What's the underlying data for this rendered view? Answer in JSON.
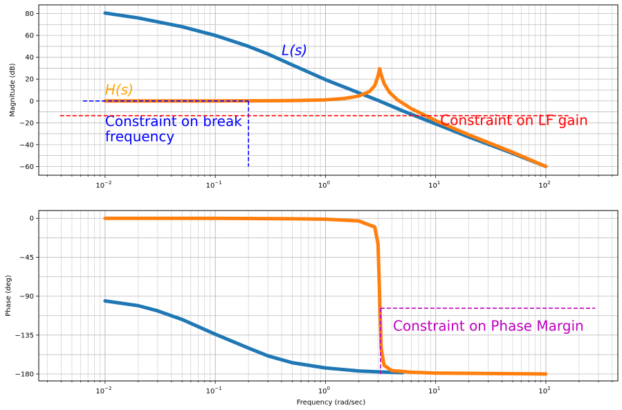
{
  "chart_data": [
    {
      "type": "line",
      "xscale": "log",
      "xlim": [
        0.0025,
        450
      ],
      "ylim": [
        -68,
        88
      ],
      "ylabel": "Magnitude (dB)",
      "xlabel": "",
      "grid": true,
      "xticks": [
        {
          "value": 0.01,
          "label": "10",
          "exp": "−2"
        },
        {
          "value": 0.1,
          "label": "10",
          "exp": "−1"
        },
        {
          "value": 1,
          "label": "10",
          "exp": "0"
        },
        {
          "value": 10,
          "label": "10",
          "exp": "1"
        },
        {
          "value": 100,
          "label": "10",
          "exp": "2"
        }
      ],
      "yticks": [
        {
          "value": 80,
          "label": "80"
        },
        {
          "value": 60,
          "label": "60"
        },
        {
          "value": 40,
          "label": "40"
        },
        {
          "value": 20,
          "label": "20"
        },
        {
          "value": 0,
          "label": "0"
        },
        {
          "value": -20,
          "label": "−20"
        },
        {
          "value": -40,
          "label": "−40"
        },
        {
          "value": -60,
          "label": "−60"
        }
      ],
      "series": [
        {
          "id": "L",
          "color": "#1f77b4",
          "points": [
            [
              0.01,
              80.5
            ],
            [
              0.02,
              76
            ],
            [
              0.05,
              68
            ],
            [
              0.1,
              60
            ],
            [
              0.2,
              50
            ],
            [
              0.3,
              43
            ],
            [
              0.5,
              33
            ],
            [
              1,
              19.5
            ],
            [
              2,
              7.5
            ],
            [
              3,
              0.5
            ],
            [
              5,
              -9
            ],
            [
              10,
              -21
            ],
            [
              20,
              -33
            ],
            [
              50,
              -48
            ],
            [
              100,
              -60
            ]
          ]
        },
        {
          "id": "H",
          "color": "#ff7f0e",
          "points": [
            [
              0.01,
              0
            ],
            [
              0.1,
              0
            ],
            [
              0.5,
              0.3
            ],
            [
              1,
              1
            ],
            [
              1.5,
              2.3
            ],
            [
              2,
              4.5
            ],
            [
              2.5,
              8.5
            ],
            [
              2.8,
              14
            ],
            [
              3.0,
              23
            ],
            [
              3.1,
              29.5
            ],
            [
              3.2,
              24
            ],
            [
              3.4,
              16
            ],
            [
              3.8,
              8
            ],
            [
              4.5,
              1
            ],
            [
              6,
              -7
            ],
            [
              10,
              -18
            ],
            [
              20,
              -31
            ],
            [
              50,
              -47
            ],
            [
              100,
              -60
            ]
          ]
        }
      ],
      "constraints": [
        {
          "id": "break",
          "color": "#0000ff",
          "dash": true,
          "lines": [
            [
              [
                0.0063,
                0
              ],
              [
                0.2,
                0
              ]
            ],
            [
              [
                0.2,
                0
              ],
              [
                0.2,
                -60
              ]
            ]
          ],
          "label": "Constraint on break\nfrequency",
          "label_at": [
            0.01,
            -23
          ]
        },
        {
          "id": "lf",
          "color": "#ff0000",
          "dash": true,
          "lines": [
            [
              [
                0.0039,
                -13.5
              ],
              [
                160,
                -13.5
              ]
            ]
          ],
          "label": "Constraint on LF gain",
          "label_at": [
            11,
            -22
          ]
        }
      ],
      "annotations": [
        {
          "text": "L(s)",
          "color": "#0000ff",
          "at": [
            0.4,
            42
          ]
        },
        {
          "text": "H(s)",
          "color": "#ffa500",
          "at": [
            0.01,
            6
          ]
        }
      ]
    },
    {
      "type": "line",
      "xscale": "log",
      "xlim": [
        0.0025,
        450
      ],
      "ylim": [
        -188,
        9
      ],
      "ylabel": "Phase (deg)",
      "xlabel": "Frequency (rad/sec)",
      "grid": true,
      "xticks": [
        {
          "value": 0.01,
          "label": "10",
          "exp": "−2"
        },
        {
          "value": 0.1,
          "label": "10",
          "exp": "−1"
        },
        {
          "value": 1,
          "label": "10",
          "exp": "0"
        },
        {
          "value": 10,
          "label": "10",
          "exp": "1"
        },
        {
          "value": 100,
          "label": "10",
          "exp": "2"
        }
      ],
      "yticks": [
        {
          "value": 0,
          "label": "0"
        },
        {
          "value": -45,
          "label": "−45"
        },
        {
          "value": -90,
          "label": "−90"
        },
        {
          "value": -135,
          "label": "−135"
        },
        {
          "value": -180,
          "label": "−180"
        }
      ],
      "series": [
        {
          "id": "L",
          "color": "#1f77b4",
          "points": [
            [
              0.01,
              -95.5
            ],
            [
              0.02,
              -101
            ],
            [
              0.03,
              -107
            ],
            [
              0.05,
              -117
            ],
            [
              0.1,
              -134
            ],
            [
              0.2,
              -150
            ],
            [
              0.3,
              -159
            ],
            [
              0.5,
              -167
            ],
            [
              1,
              -173
            ],
            [
              2,
              -176.5
            ],
            [
              3,
              -177.5
            ],
            [
              5,
              -178.5
            ]
          ]
        },
        {
          "id": "H",
          "color": "#ff7f0e",
          "points": [
            [
              0.01,
              0
            ],
            [
              0.1,
              0
            ],
            [
              0.5,
              -0.5
            ],
            [
              1,
              -1
            ],
            [
              2,
              -3
            ],
            [
              2.8,
              -10
            ],
            [
              3.0,
              -30
            ],
            [
              3.1,
              -90
            ],
            [
              3.2,
              -150
            ],
            [
              3.4,
              -170
            ],
            [
              4,
              -176
            ],
            [
              6,
              -178
            ],
            [
              10,
              -179
            ],
            [
              100,
              -180
            ]
          ]
        }
      ],
      "constraints": [
        {
          "id": "pm",
          "color": "#bf00bf",
          "dash": true,
          "lines": [
            [
              [
                3.16,
                -104
              ],
              [
                280,
                -104
              ]
            ],
            [
              [
                3.16,
                -104
              ],
              [
                3.16,
                -180
              ]
            ]
          ],
          "label": "Constraint on Phase Margin",
          "label_at": [
            4.1,
            -130
          ]
        }
      ],
      "annotations": []
    }
  ]
}
